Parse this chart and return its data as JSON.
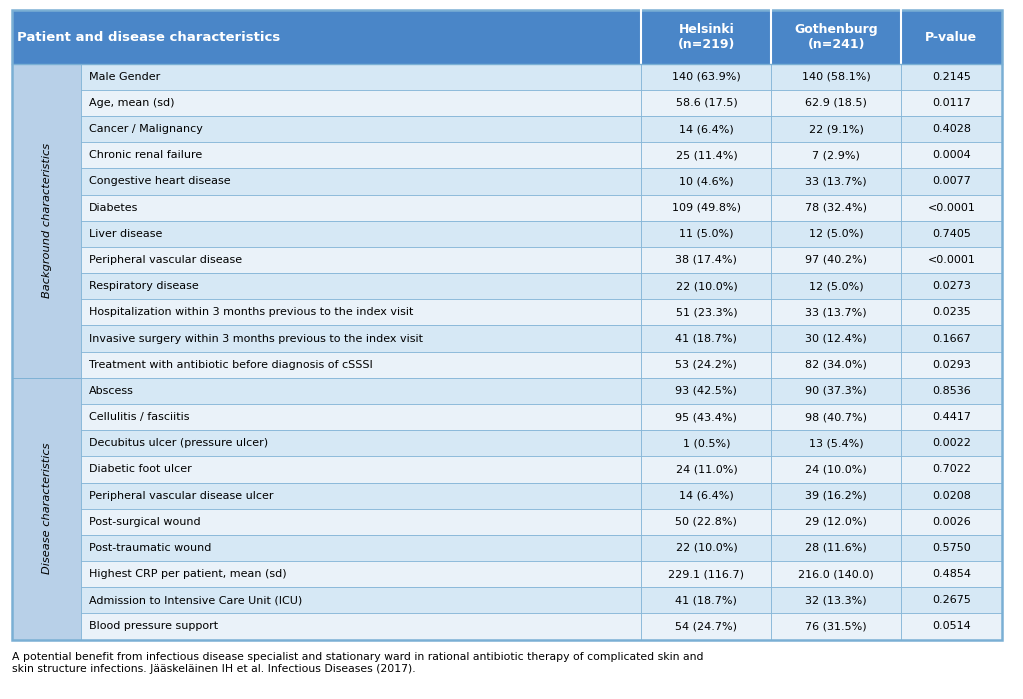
{
  "title": "Patient and disease characteristics",
  "col_headers": [
    "Helsinki\n(n=219)",
    "Gothenburg\n(n=241)",
    "P-value"
  ],
  "row_groups": [
    {
      "group_label": "Background characteristics",
      "rows": [
        [
          "Male Gender",
          "140 (63.9%)",
          "140 (58.1%)",
          "0.2145"
        ],
        [
          "Age, mean (sd)",
          "58.6 (17.5)",
          "62.9 (18.5)",
          "0.0117"
        ],
        [
          "Cancer / Malignancy",
          "14 (6.4%)",
          "22 (9.1%)",
          "0.4028"
        ],
        [
          "Chronic renal failure",
          "25 (11.4%)",
          "7 (2.9%)",
          "0.0004"
        ],
        [
          "Congestive heart disease",
          "10 (4.6%)",
          "33 (13.7%)",
          "0.0077"
        ],
        [
          "Diabetes",
          "109 (49.8%)",
          "78 (32.4%)",
          "<0.0001"
        ],
        [
          "Liver disease",
          "11 (5.0%)",
          "12 (5.0%)",
          "0.7405"
        ],
        [
          "Peripheral vascular disease",
          "38 (17.4%)",
          "97 (40.2%)",
          "<0.0001"
        ],
        [
          "Respiratory disease",
          "22 (10.0%)",
          "12 (5.0%)",
          "0.0273"
        ],
        [
          "Hospitalization within 3 months previous to the index visit",
          "51 (23.3%)",
          "33 (13.7%)",
          "0.0235"
        ],
        [
          "Invasive surgery within 3 months previous to the index visit",
          "41 (18.7%)",
          "30 (12.4%)",
          "0.1667"
        ],
        [
          "Treatment with antibiotic before diagnosis of cSSSI",
          "53 (24.2%)",
          "82 (34.0%)",
          "0.0293"
        ]
      ]
    },
    {
      "group_label": "Disease characteristics",
      "rows": [
        [
          "Abscess",
          "93 (42.5%)",
          "90 (37.3%)",
          "0.8536"
        ],
        [
          "Cellulitis / fasciitis",
          "95 (43.4%)",
          "98 (40.7%)",
          "0.4417"
        ],
        [
          "Decubitus ulcer (pressure ulcer)",
          "1 (0.5%)",
          "13 (5.4%)",
          "0.0022"
        ],
        [
          "Diabetic foot ulcer",
          "24 (11.0%)",
          "24 (10.0%)",
          "0.7022"
        ],
        [
          "Peripheral vascular disease ulcer",
          "14 (6.4%)",
          "39 (16.2%)",
          "0.0208"
        ],
        [
          "Post-surgical wound",
          "50 (22.8%)",
          "29 (12.0%)",
          "0.0026"
        ],
        [
          "Post-traumatic wound",
          "22 (10.0%)",
          "28 (11.6%)",
          "0.5750"
        ],
        [
          "Highest CRP per patient, mean (sd)",
          "229.1 (116.7)",
          "216.0 (140.0)",
          "0.4854"
        ],
        [
          "Admission to Intensive Care Unit (ICU)",
          "41 (18.7%)",
          "32 (13.3%)",
          "0.2675"
        ],
        [
          "Blood pressure support",
          "54 (24.7%)",
          "76 (31.5%)",
          "0.0514"
        ]
      ]
    }
  ],
  "footer": "A potential benefit from infectious disease specialist and stationary ward in rational antibiotic therapy of complicated skin and\nskin structure infections. Jääskeläinen IH et al. Infectious Diseases (2017).",
  "header_bg": "#4a86c8",
  "header_text_color": "#ffffff",
  "group_label_bg": "#b8d0e8",
  "row_even_bg": "#d6e8f5",
  "row_odd_bg": "#eaf2f9",
  "border_color": "#7aafd4",
  "fig_width": 10.23,
  "fig_height": 6.99,
  "dpi": 100
}
